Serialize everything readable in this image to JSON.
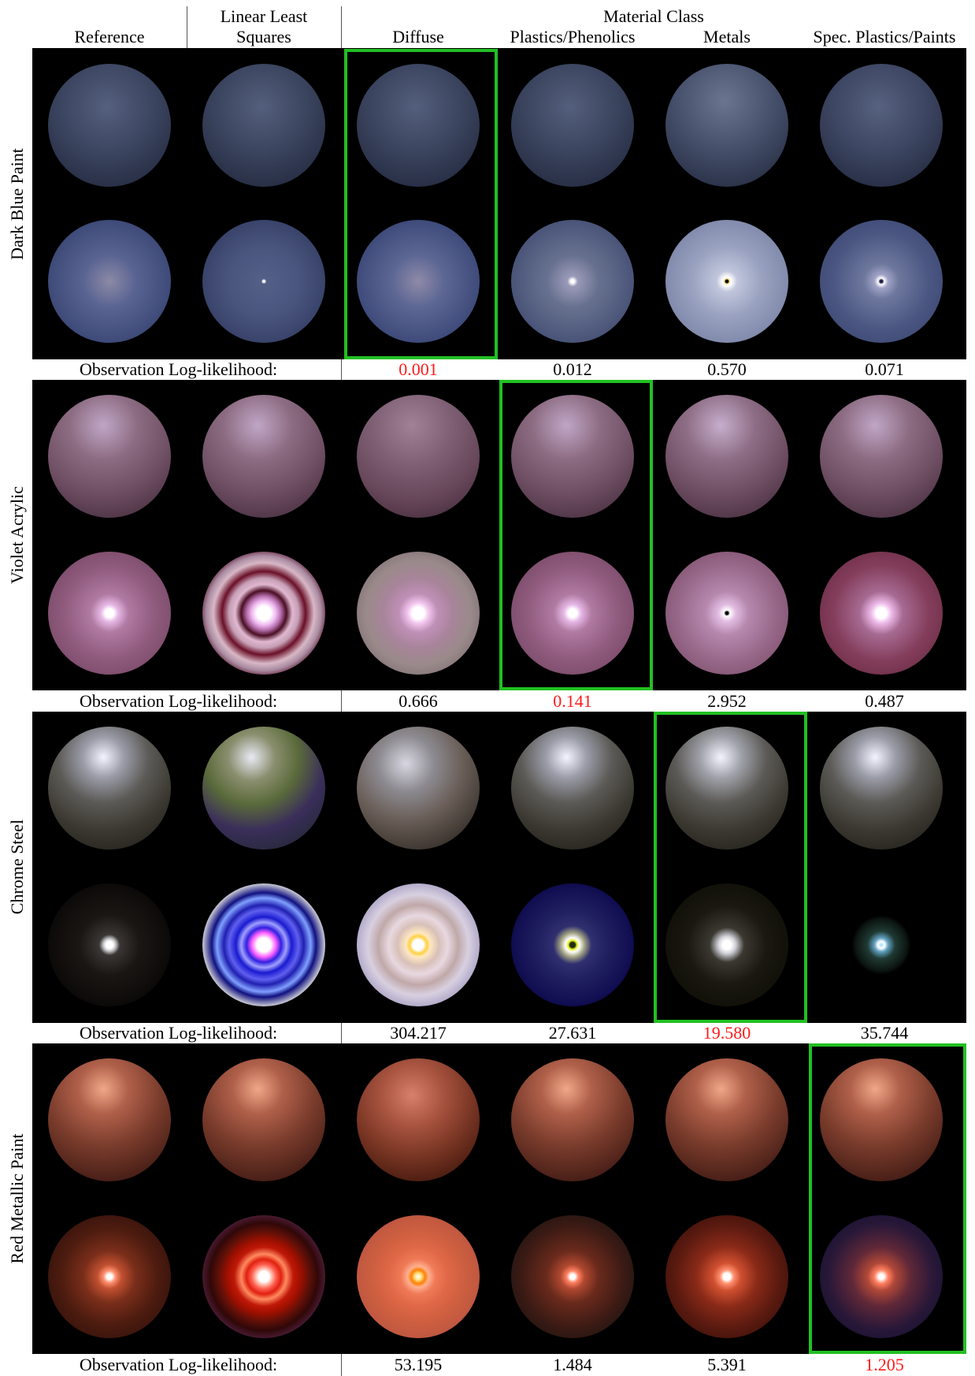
{
  "header": {
    "reference": "Reference",
    "lls_line1": "Linear Least",
    "lls_line2": "Squares",
    "material_class": "Material Class",
    "diffuse": "Diffuse",
    "plastics": "Plastics/Phenolics",
    "metals": "Metals",
    "spec_plastics": "Spec. Plastics/Paints"
  },
  "rows": [
    {
      "label": "Dark Blue Paint",
      "obs_label": "Observation Log-likelihood:",
      "values": [
        "0.001",
        "0.012",
        "0.570",
        "0.071"
      ],
      "best_index": 0
    },
    {
      "label": "Violet Acrylic",
      "obs_label": "Observation Log-likelihood:",
      "values": [
        "0.666",
        "0.141",
        "2.952",
        "0.487"
      ],
      "best_index": 1
    },
    {
      "label": "Chrome Steel",
      "obs_label": "Observation Log-likelihood:",
      "values": [
        "304.217",
        "27.631",
        "19.580",
        "35.744"
      ],
      "best_index": 2
    },
    {
      "label": "Red Metallic Paint",
      "obs_label": "Observation Log-likelihood:",
      "values": [
        "53.195",
        "1.484",
        "5.391",
        "1.205"
      ],
      "best_index": 3
    }
  ],
  "colors": {
    "highlight": "#22c022",
    "best_value": "#ff1a1a"
  }
}
